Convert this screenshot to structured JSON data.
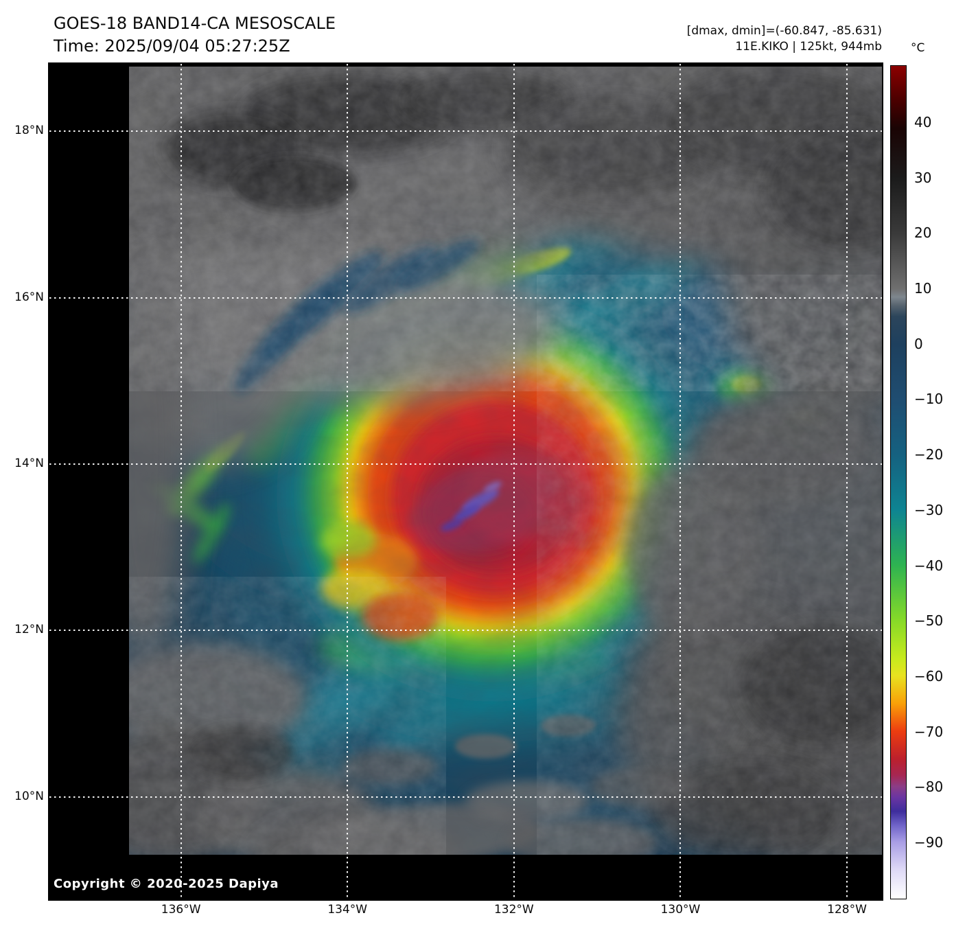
{
  "header": {
    "title": "GOES-18 BAND14-CA MESOSCALE",
    "time": "Time: 2025/09/04 05:27:25Z",
    "dmax_dmin": "[dmax, dmin]=(-60.847, -85.631)",
    "storm_info": "11E.KIKO | 125kt, 944mb"
  },
  "map": {
    "copyright": "Copyright © 2020-2025 Dapiya",
    "extent": {
      "west": 137.58,
      "east": 127.58,
      "north": 18.81,
      "south": 8.77
    },
    "lon_ticks": [
      {
        "v": 136,
        "label": "136°W"
      },
      {
        "v": 134,
        "label": "134°W"
      },
      {
        "v": 132,
        "label": "132°W"
      },
      {
        "v": 130,
        "label": "130°W"
      },
      {
        "v": 128,
        "label": "128°W"
      }
    ],
    "lat_ticks": [
      {
        "v": 18,
        "label": "18°N"
      },
      {
        "v": 16,
        "label": "16°N"
      },
      {
        "v": 14,
        "label": "14°N"
      },
      {
        "v": 12,
        "label": "12°N"
      },
      {
        "v": 10,
        "label": "10°N"
      }
    ]
  },
  "colorbar": {
    "unit": "°C",
    "vmax": 50.3,
    "vmin": -100.3,
    "ticks": [
      {
        "v": 40,
        "label": "40"
      },
      {
        "v": 30,
        "label": "30"
      },
      {
        "v": 20,
        "label": "20"
      },
      {
        "v": 10,
        "label": "10"
      },
      {
        "v": 0,
        "label": "0"
      },
      {
        "v": -10,
        "label": "−10"
      },
      {
        "v": -20,
        "label": "−20"
      },
      {
        "v": -30,
        "label": "−30"
      },
      {
        "v": -40,
        "label": "−40"
      },
      {
        "v": -50,
        "label": "−50"
      },
      {
        "v": -60,
        "label": "−60"
      },
      {
        "v": -70,
        "label": "−70"
      },
      {
        "v": -80,
        "label": "−80"
      },
      {
        "v": -90,
        "label": "−90"
      }
    ],
    "stops": [
      {
        "t": 50.3,
        "c": "#8c0000"
      },
      {
        "t": 44,
        "c": "#4a0000"
      },
      {
        "t": 39,
        "c": "#1a0404"
      },
      {
        "t": 30,
        "c": "#1b1b1b"
      },
      {
        "t": 20,
        "c": "#3a3a3a"
      },
      {
        "t": 10,
        "c": "#6f6f6f"
      },
      {
        "t": 8.5,
        "c": "#7e868e"
      },
      {
        "t": 7,
        "c": "#57646f"
      },
      {
        "t": 5,
        "c": "#2c455b"
      },
      {
        "t": 0,
        "c": "#1e405e"
      },
      {
        "t": -10,
        "c": "#1f4d71"
      },
      {
        "t": -20,
        "c": "#156180"
      },
      {
        "t": -30,
        "c": "#0e8492"
      },
      {
        "t": -40,
        "c": "#2eb351"
      },
      {
        "t": -50,
        "c": "#87da28"
      },
      {
        "t": -57,
        "c": "#c8ea1d"
      },
      {
        "t": -60,
        "c": "#e8e220"
      },
      {
        "t": -65,
        "c": "#f9a008"
      },
      {
        "t": -70,
        "c": "#ec3d10"
      },
      {
        "t": -75,
        "c": "#bc202c"
      },
      {
        "t": -78,
        "c": "#a62753"
      },
      {
        "t": -80,
        "c": "#8c3d86"
      },
      {
        "t": -82,
        "c": "#6a35a2"
      },
      {
        "t": -84.5,
        "c": "#3e2d9c"
      },
      {
        "t": -87,
        "c": "#6f63c8"
      },
      {
        "t": -90,
        "c": "#a89de5"
      },
      {
        "t": -95,
        "c": "#ded9f6"
      },
      {
        "t": -100.3,
        "c": "#ffffff"
      }
    ]
  },
  "chart_data": {
    "type": "heatmap",
    "title": "GOES-18 BAND14-CA MESOSCALE",
    "subtitle": "Time: 2025/09/04 05:27:25Z",
    "colorbar_unit": "°C",
    "colorbar_range": [
      -100,
      50
    ],
    "colorbar_ticks": [
      40,
      30,
      20,
      10,
      0,
      -10,
      -20,
      -30,
      -40,
      -50,
      -60,
      -70,
      -80,
      -90
    ],
    "lon_gridlines_degW": [
      136,
      134,
      132,
      130,
      128
    ],
    "lat_gridlines_degN": [
      18,
      16,
      14,
      12,
      10
    ],
    "grid": "dotted-white",
    "legend_position": "right-colorbar",
    "storm": {
      "id_name": "11E.KIKO",
      "intensity": "125kt",
      "pressure": "944mb",
      "dmax_c": -60.847,
      "dmin_c": -85.631,
      "center_approx": {
        "lat_degN": 13.6,
        "lon_degW": 132.3
      }
    }
  }
}
